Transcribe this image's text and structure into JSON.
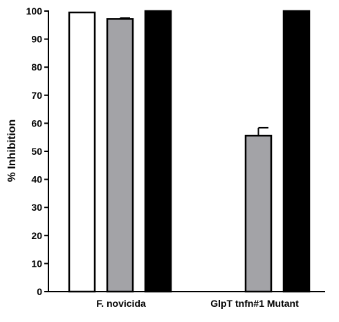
{
  "chart_data": {
    "type": "bar",
    "categories": [
      "F. novicida",
      "GlpT tnfn#1 Mutant"
    ],
    "series": [
      {
        "fill": "#ffffff",
        "values": [
          99.5,
          null
        ],
        "errors": [
          0,
          0
        ]
      },
      {
        "fill": "#a3a3a7",
        "values": [
          97.2,
          55.6
        ],
        "errors": [
          0.3,
          2.8
        ]
      },
      {
        "fill": "#000000",
        "values": [
          100,
          100
        ],
        "errors": [
          0,
          0
        ]
      }
    ],
    "ylabel": "% Inhibition",
    "ylim": [
      0,
      100
    ],
    "yticks": [
      0,
      10,
      20,
      30,
      40,
      50,
      60,
      70,
      80,
      90,
      100
    ],
    "grid": false,
    "legend": "none"
  }
}
